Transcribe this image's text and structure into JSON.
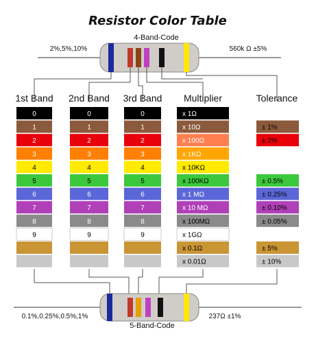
{
  "title": "Resistor Color Table",
  "four_band": {
    "label": "4-Band-Code",
    "left_note": "2%,5%,10%",
    "right_note": "560k Ω  ±5%",
    "bands": [
      "#1a2a9a",
      "#c0392b",
      "#8b4513",
      "#c040c0",
      "#111111",
      "#ffe800"
    ]
  },
  "five_band": {
    "label": "5-Band-Code",
    "left_note": "0.1%,0.25%,0.5%,1%",
    "right_note": "237Ω  ±1%",
    "bands": [
      "#1a2a9a",
      "#c0392b",
      "#e6a000",
      "#c040c0",
      "#111111",
      "#ffe800"
    ]
  },
  "columns": {
    "band1": "1st Band",
    "band2": "2nd Band",
    "band3": "3rd Band",
    "multiplier": "Multiplier",
    "tolerance": "Tolerance"
  },
  "colors": [
    {
      "bg": "#000000",
      "fg": "#ffffff"
    },
    {
      "bg": "#8b5a3c",
      "fg": "#ffffff"
    },
    {
      "bg": "#e8000b",
      "fg": "#ffffff"
    },
    {
      "bg": "#ff7f00",
      "fg": "#ffffff"
    },
    {
      "bg": "#ffea00",
      "fg": "#000000"
    },
    {
      "bg": "#3cc83c",
      "fg": "#000000"
    },
    {
      "bg": "#5b67d8",
      "fg": "#ffffff"
    },
    {
      "bg": "#b040b8",
      "fg": "#ffffff"
    },
    {
      "bg": "#8a8a8a",
      "fg": "#ffffff"
    },
    {
      "bg": "#ffffff",
      "fg": "#000000"
    },
    {
      "bg": "#c99535",
      "fg": "#000000"
    },
    {
      "bg": "#c8c8c8",
      "fg": "#000000"
    }
  ],
  "digits": [
    "0",
    "1",
    "2",
    "3",
    "4",
    "5",
    "6",
    "7",
    "8",
    "9",
    "",
    ""
  ],
  "multipliers": [
    "x 1Ω",
    "x 10Ω",
    "x 100Ω",
    "x 1KΩ",
    "x 10KΩ",
    "x 100KΩ",
    "x 1 MΩ",
    "x 10 MΩ",
    "x 100MΩ",
    "x 1GΩ",
    "x 0.1Ω",
    "x 0.01Ω"
  ],
  "multiplier_colors": [
    "#000000",
    "#8b5a3c",
    "#ff7f50",
    "#ffa500",
    "#ffea00",
    "#3cc83c",
    "#5b67d8",
    "#b040b8",
    "#8a8a8a",
    "#ffffff",
    "#c99535",
    "#c8c8c8"
  ],
  "tolerances": [
    {
      "row": 1,
      "label": "± 1%",
      "bg": "#8b5a3c",
      "fg": "#000000"
    },
    {
      "row": 2,
      "label": "± 2%",
      "bg": "#e8000b",
      "fg": "#000000"
    },
    {
      "row": 5,
      "label": "± 0.5%",
      "bg": "#3cc83c",
      "fg": "#000000"
    },
    {
      "row": 6,
      "label": "± 0.25%",
      "bg": "#5b67d8",
      "fg": "#000000"
    },
    {
      "row": 7,
      "label": "± 0.10%",
      "bg": "#b040b8",
      "fg": "#000000"
    },
    {
      "row": 8,
      "label": "± 0.05%",
      "bg": "#8a8a8a",
      "fg": "#000000"
    },
    {
      "row": 10,
      "label": "± 5%",
      "bg": "#c99535",
      "fg": "#000000"
    },
    {
      "row": 11,
      "label": "± 10%",
      "bg": "#c8c8c8",
      "fg": "#000000"
    }
  ]
}
